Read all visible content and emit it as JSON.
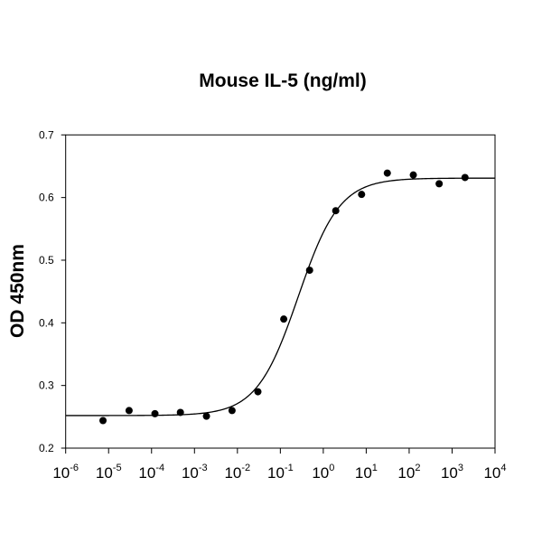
{
  "chart_data": {
    "type": "scatter",
    "title": "Mouse IL-5 (ng/ml)",
    "xlabel": "",
    "ylabel": "OD 450nm",
    "x_scale": "log",
    "xlim": [
      1e-06,
      10000.0
    ],
    "ylim": [
      0.2,
      0.7
    ],
    "x_ticks": [
      {
        "base": "10",
        "exp": "-6"
      },
      {
        "base": "10",
        "exp": "-5"
      },
      {
        "base": "10",
        "exp": "-4"
      },
      {
        "base": "10",
        "exp": "-3"
      },
      {
        "base": "10",
        "exp": "-2"
      },
      {
        "base": "10",
        "exp": "-1"
      },
      {
        "base": "10",
        "exp": "0"
      },
      {
        "base": "10",
        "exp": "1"
      },
      {
        "base": "10",
        "exp": "2"
      },
      {
        "base": "10",
        "exp": "3"
      },
      {
        "base": "10",
        "exp": "4"
      }
    ],
    "y_ticks": [
      "0.2",
      "0.3",
      "0.4",
      "0.5",
      "0.6",
      "0.7"
    ],
    "grid": false,
    "marker_color": "#000000",
    "points": {
      "x": [
        7.4e-06,
        3e-05,
        0.00012,
        0.00047,
        0.0019,
        0.0075,
        0.03,
        0.12,
        0.48,
        1.95,
        7.8,
        31,
        125,
        500,
        2000
      ],
      "y": [
        0.244,
        0.26,
        0.255,
        0.257,
        0.251,
        0.26,
        0.29,
        0.406,
        0.484,
        0.579,
        0.605,
        0.639,
        0.636,
        0.622,
        0.632
      ]
    },
    "fit": {
      "model": "4-parameter logistic",
      "bottom": 0.252,
      "top": 0.631,
      "ec50": 0.26,
      "hill": 0.9
    }
  }
}
